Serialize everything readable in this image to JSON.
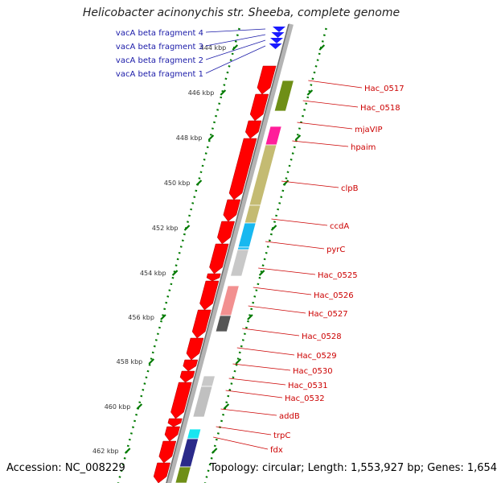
{
  "title": "Helicobacter acinonychis str. Sheeba, complete genome",
  "footer": {
    "accession": "Accession: NC_008229",
    "topology": "Topology: circular; Length: 1,553,927 bp; Genes: 1,654"
  },
  "colors": {
    "backbone": "#888888",
    "tick": "#007a00",
    "feature_label": "#cc0000",
    "fragment_label": "#1a1aa8",
    "gene_red": "#ff0000"
  },
  "ruler": {
    "unit": "kbp",
    "ticks": [
      {
        "value": 444,
        "label": "444 kbp"
      },
      {
        "value": 446,
        "label": "446 kbp"
      },
      {
        "value": 448,
        "label": "448 kbp"
      },
      {
        "value": 450,
        "label": "450 kbp"
      },
      {
        "value": 452,
        "label": "452 kbp"
      },
      {
        "value": 454,
        "label": "454 kbp"
      },
      {
        "value": 456,
        "label": "456 kbp"
      },
      {
        "value": 458,
        "label": "458 kbp"
      },
      {
        "value": 460,
        "label": "460 kbp"
      },
      {
        "value": 462,
        "label": "462 kbp"
      }
    ]
  },
  "fragments": [
    {
      "label": "vacA beta fragment 4"
    },
    {
      "label": "vacA beta fragment 3"
    },
    {
      "label": "vacA beta fragment 2"
    },
    {
      "label": "vacA beta fragment 1"
    }
  ],
  "genes": [
    {
      "label": "Hac_0517"
    },
    {
      "label": "Hac_0518"
    },
    {
      "label": "mjaVIP"
    },
    {
      "label": "hpaim"
    },
    {
      "label": "clpB"
    },
    {
      "label": "ccdA"
    },
    {
      "label": "pyrC"
    },
    {
      "label": "Hac_0525"
    },
    {
      "label": "Hac_0526"
    },
    {
      "label": "Hac_0527"
    },
    {
      "label": "Hac_0528"
    },
    {
      "label": "Hac_0529"
    },
    {
      "label": "Hac_0530"
    },
    {
      "label": "Hac_0531"
    },
    {
      "label": "Hac_0532"
    },
    {
      "label": "addB"
    },
    {
      "label": "trpC"
    },
    {
      "label": "fdx"
    }
  ]
}
